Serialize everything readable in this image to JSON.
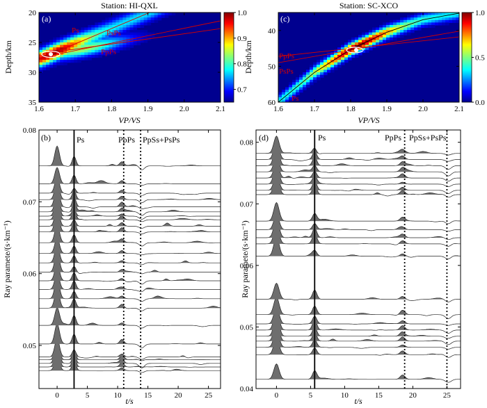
{
  "chart_data": [
    {
      "panel": "a",
      "type": "heatmap",
      "title": "Station: HI-QXL",
      "panel_label": "(a)",
      "xlabel": "VP/VS",
      "ylabel": "Depth/km",
      "xlim": [
        1.6,
        2.1
      ],
      "ylim": [
        35,
        20
      ],
      "xticks": [
        "1.6",
        "1.7",
        "1.8",
        "1.9",
        "2.0",
        "2.1"
      ],
      "yticks": [
        "20",
        "25",
        "30",
        "35"
      ],
      "colorbar_ticks": [
        "1.0",
        "0.9",
        "0.8",
        "0.7"
      ],
      "colorbar_range": [
        0.65,
        1.0
      ],
      "peak": {
        "k": 1.64,
        "h": 27.0
      },
      "phase_curves": [
        {
          "name": "Ps",
          "label": "Ps",
          "points": [
            [
              1.6,
              27.8
            ],
            [
              2.1,
              15.0
            ]
          ]
        },
        {
          "name": "PpPs",
          "label": "PpPs",
          "points": [
            [
              1.6,
              27.0
            ],
            [
              2.1,
              22.7
            ]
          ]
        },
        {
          "name": "PsPs",
          "label": "PsPs",
          "points": [
            [
              1.6,
              27.6
            ],
            [
              2.1,
              21.4
            ]
          ]
        }
      ]
    },
    {
      "panel": "c",
      "type": "heatmap",
      "title": "Station: SC-XCO",
      "panel_label": "(c)",
      "xlabel": "VP/VS",
      "ylabel": "Depth/km",
      "xlim": [
        1.6,
        2.1
      ],
      "ylim": [
        60,
        35
      ],
      "xticks": [
        "1.6",
        "1.7",
        "1.8",
        "1.9",
        "2.0",
        "2.1"
      ],
      "yticks": [
        "40",
        "50",
        "60"
      ],
      "colorbar_ticks": [
        "1.0",
        "0.5",
        "0.0"
      ],
      "colorbar_range": [
        0.0,
        1.0
      ],
      "peak": {
        "k": 1.81,
        "h": 45.3
      },
      "phase_curves": [
        {
          "name": "Ps",
          "label": "Ps",
          "points": [
            [
              1.6,
              60.0
            ],
            [
              1.7,
              51.7
            ],
            [
              1.8,
              45.3
            ],
            [
              1.9,
              40.5
            ],
            [
              2.0,
              37.0
            ],
            [
              2.1,
              35.2
            ]
          ]
        },
        {
          "name": "PpPs",
          "label": "PpPs",
          "points": [
            [
              1.6,
              47.2
            ],
            [
              2.1,
              41.8
            ]
          ]
        },
        {
          "name": "PsPs",
          "label": "PsPs",
          "points": [
            [
              1.6,
              49.0
            ],
            [
              2.1,
              40.2
            ]
          ]
        }
      ]
    },
    {
      "panel": "b",
      "type": "line",
      "panel_label": "(b)",
      "xlabel": "t/s",
      "ylabel": "Ray paramete/(s·km⁻¹)",
      "xlim": [
        -3,
        27
      ],
      "ylim": [
        0.044,
        0.08
      ],
      "xticks": [
        "0",
        "5",
        "10",
        "15",
        "20",
        "25"
      ],
      "yticks": [
        "0.05",
        "0.06",
        "0.07",
        "0.08"
      ],
      "phase_lines": [
        {
          "name": "Ps",
          "label": "Ps",
          "t": 2.8,
          "style": "solid"
        },
        {
          "name": "PpPs",
          "label": "PpPs",
          "t": 11.0,
          "style": "dotted"
        },
        {
          "name": "PpSs+PsPs",
          "label": "PpSs+PsPs",
          "t": 13.8,
          "style": "dotted"
        }
      ],
      "trace_ray_params": [
        0.0465,
        0.047,
        0.0475,
        0.048,
        0.0484,
        0.0502,
        0.0528,
        0.0552,
        0.0565,
        0.0578,
        0.059,
        0.0602,
        0.0615,
        0.0628,
        0.0643,
        0.0658,
        0.0666,
        0.0675,
        0.068,
        0.0686,
        0.0693,
        0.0703,
        0.0712,
        0.0725,
        0.075
      ]
    },
    {
      "panel": "d",
      "type": "line",
      "panel_label": "(d)",
      "xlabel": "t/s",
      "ylabel": "Ray paramete/(s·km⁻¹)",
      "xlim": [
        -3,
        27
      ],
      "ylim": [
        0.04,
        0.082
      ],
      "xticks": [
        "0",
        "5",
        "10",
        "15",
        "20",
        "25"
      ],
      "yticks": [
        "0.04",
        "0.05",
        "0.06",
        "0.07",
        "0.08"
      ],
      "phase_lines": [
        {
          "name": "Ps",
          "label": "Ps",
          "t": 5.6,
          "style": "solid"
        },
        {
          "name": "PpPs",
          "label": "PpPs",
          "t": 18.8,
          "style": "dotted"
        },
        {
          "name": "PpSs+PsPs",
          "label": "PpSs+PsPs",
          "t": 25.0,
          "style": "dotted"
        }
      ],
      "trace_ray_params": [
        0.0415,
        0.0455,
        0.0467,
        0.0477,
        0.0485,
        0.0495,
        0.0505,
        0.052,
        0.0545,
        0.0615,
        0.0635,
        0.0645,
        0.0658,
        0.0672,
        0.0715,
        0.0722,
        0.0732,
        0.0742,
        0.0752,
        0.0762,
        0.0772,
        0.0782
      ]
    }
  ]
}
